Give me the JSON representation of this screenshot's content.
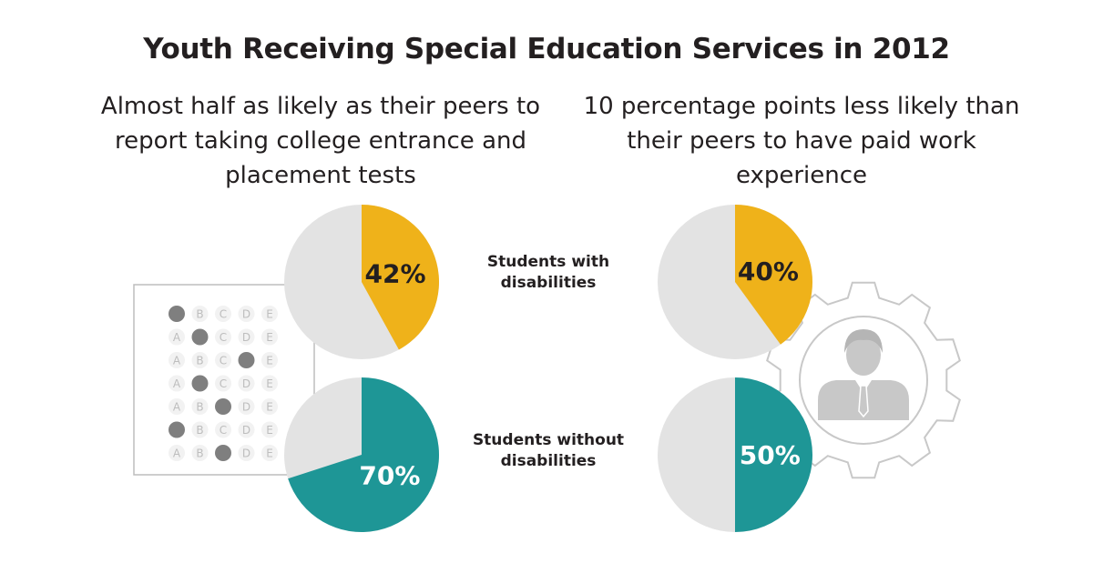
{
  "title": "Youth Receiving Special Education Services in 2012",
  "left_heading": "Almost half as likely as their peers to report taking college entrance and placement tests",
  "right_heading": "10 percentage points less likely than their peers to have paid work experience",
  "row_labels": [
    "Students with disabilities",
    "Students without disabilities"
  ],
  "answer_sheet": {
    "letters": [
      "A",
      "B",
      "C",
      "D",
      "E"
    ],
    "filled_choice_index": [
      0,
      1,
      3,
      1,
      2,
      0,
      2
    ]
  },
  "colors": {
    "disabilities": "#efb21a",
    "no_disabilities": "#1e9696",
    "remainder": "#e3e3e3",
    "icon_gray": "#c8c8c8",
    "bubble_filled": "#7f7f7f"
  },
  "chart_data": [
    {
      "type": "pie",
      "title": "Almost half as likely as their peers to report taking college entrance and placement tests",
      "series": [
        {
          "name": "Students with disabilities",
          "value": 42,
          "label": "42%"
        },
        {
          "name": "Students without disabilities",
          "value": 70,
          "label": "70%"
        }
      ]
    },
    {
      "type": "pie",
      "title": "10 percentage points less likely than their peers to have paid work experience",
      "series": [
        {
          "name": "Students with disabilities",
          "value": 40,
          "label": "40%"
        },
        {
          "name": "Students without disabilities",
          "value": 50,
          "label": "50%"
        }
      ]
    }
  ]
}
